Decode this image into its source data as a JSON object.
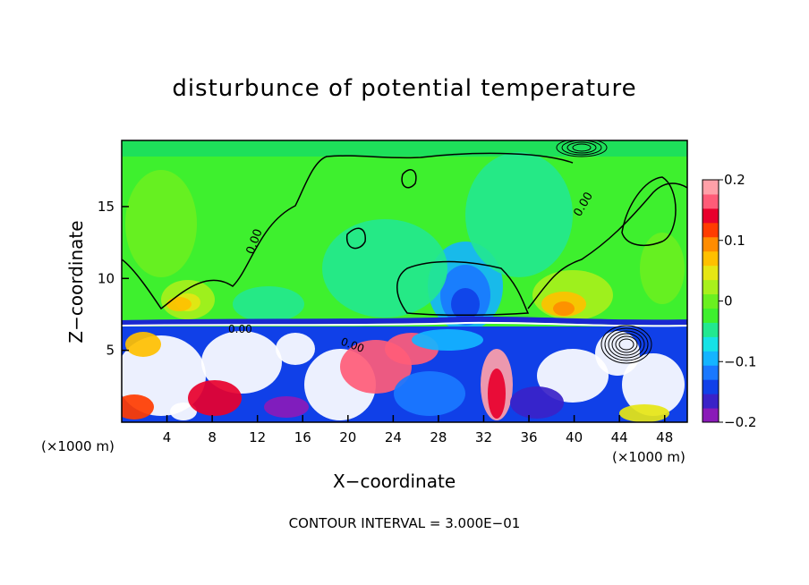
{
  "chart_data": {
    "type": "heatmap",
    "title": "disturbunce of potential temperature",
    "xlabel": "X−coordinate",
    "ylabel": "Z−coordinate",
    "x_unit_left": "(×1000 m)",
    "x_unit_right": "(×1000 m)",
    "note": "CONTOUR INTERVAL = 3.000E−01",
    "xlim": [
      0,
      50
    ],
    "ylim": [
      0,
      19.6
    ],
    "x_ticks": [
      4,
      8,
      12,
      16,
      20,
      24,
      28,
      32,
      36,
      40,
      44,
      48
    ],
    "y_ticks": [
      5,
      10,
      15
    ],
    "colorbar": {
      "range": [
        -0.2,
        0.2
      ],
      "tick_values": [
        0.2,
        0.1,
        0,
        -0.1,
        -0.2
      ],
      "tick_labels": [
        "0.2",
        "0.1",
        "0",
        "−0.1",
        "−0.2"
      ],
      "colors": [
        "#8a1ab8",
        "#3a22c8",
        "#1040e8",
        "#1a78ff",
        "#14b4ff",
        "#16e2e6",
        "#22e890",
        "#3ef02e",
        "#6af020",
        "#a8f01c",
        "#e6e614",
        "#ffc000",
        "#ff8c00",
        "#ff3c00",
        "#e8002c",
        "#ff5c78",
        "#ffa0a8"
      ]
    },
    "contour_labels": [
      "0.00",
      "0.00",
      "0.00",
      "0.00"
    ]
  }
}
